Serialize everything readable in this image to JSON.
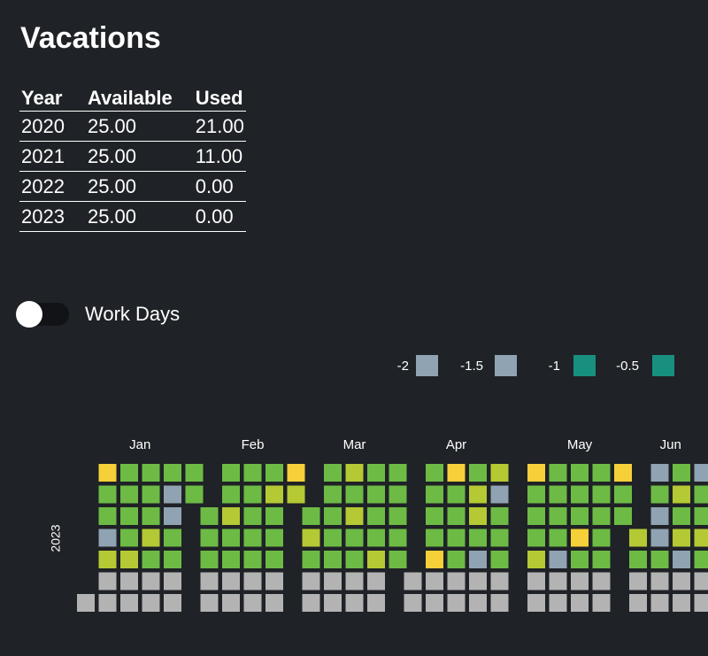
{
  "header": {
    "title": "Vacations"
  },
  "table": {
    "columns": [
      "Year",
      "Available",
      "Used"
    ],
    "rows": [
      [
        "2020",
        "25.00",
        "21.00"
      ],
      [
        "2021",
        "25.00",
        "11.00"
      ],
      [
        "2022",
        "25.00",
        "0.00"
      ],
      [
        "2023",
        "25.00",
        "0.00"
      ]
    ]
  },
  "toggle": {
    "label": "Work Days"
  },
  "legend": [
    {
      "value": -2,
      "color": "#8fa3b2"
    },
    {
      "value": -1.5,
      "color": "#8fa3b2"
    },
    {
      "value": -1,
      "color": "#17907f"
    },
    {
      "value": -0.5,
      "color": "#17907f"
    }
  ],
  "calendar": {
    "year": 2023,
    "months": [
      "Jan",
      "Feb",
      "Mar",
      "Apr",
      "May",
      "Jun"
    ],
    "days": [
      "#b3b3b3",
      "#f5d038",
      "#6dbb45",
      "#6dbb45",
      "#8fa3b2",
      "#b5c934",
      "#b3b3b3",
      "#b3b3b3",
      "#6dbb45",
      "#6dbb45",
      "#6dbb45",
      "#6dbb45",
      "#b5c934",
      "#b3b3b3",
      "#b3b3b3",
      "#6dbb45",
      "#6dbb45",
      "#6dbb45",
      "#b5c934",
      "#6dbb45",
      "#b3b3b3",
      "#b3b3b3",
      "#6dbb45",
      "#8fa3b2",
      "#8fa3b2",
      "#6dbb45",
      "#6dbb45",
      "#b3b3b3",
      "#b3b3b3",
      "#6dbb45",
      "#6dbb45",
      "#6dbb45",
      "#6dbb45",
      "#6dbb45",
      "#b3b3b3",
      "#b3b3b3",
      "#6dbb45",
      "#6dbb45",
      "#b5c934",
      "#6dbb45",
      "#6dbb45",
      "#b3b3b3",
      "#b3b3b3",
      "#6dbb45",
      "#6dbb45",
      "#6dbb45",
      "#6dbb45",
      "#6dbb45",
      "#b3b3b3",
      "#b3b3b3",
      "#6dbb45",
      "#b5c934",
      "#6dbb45",
      "#6dbb45",
      "#6dbb45",
      "#b3b3b3",
      "#b3b3b3",
      "#f5d038",
      "#b5c934",
      "#6dbb45",
      "#b5c934",
      "#6dbb45",
      "#b3b3b3",
      "#b3b3b3",
      "#6dbb45",
      "#6dbb45",
      "#6dbb45",
      "#6dbb45",
      "#6dbb45",
      "#b3b3b3",
      "#b3b3b3",
      "#b5c934",
      "#6dbb45",
      "#b5c934",
      "#6dbb45",
      "#6dbb45",
      "#b3b3b3",
      "#b3b3b3",
      "#6dbb45",
      "#6dbb45",
      "#6dbb45",
      "#6dbb45",
      "#b5c934",
      "#b3b3b3",
      "#b3b3b3",
      "#6dbb45",
      "#6dbb45",
      "#6dbb45",
      "#6dbb45",
      "#6dbb45",
      "#b3b3b3",
      "#b3b3b3",
      "#6dbb45",
      "#6dbb45",
      "#6dbb45",
      "#6dbb45",
      "#f5d038",
      "#b3b3b3",
      "#b3b3b3",
      "#f5d038",
      "#6dbb45",
      "#6dbb45",
      "#6dbb45",
      "#6dbb45",
      "#b3b3b3",
      "#b3b3b3",
      "#6dbb45",
      "#b5c934",
      "#b5c934",
      "#6dbb45",
      "#8fa3b2",
      "#b3b3b3",
      "#b3b3b3",
      "#b5c934",
      "#8fa3b2",
      "#6dbb45",
      "#6dbb45",
      "#6dbb45",
      "#b3b3b3",
      "#b3b3b3",
      "#f5d038",
      "#6dbb45",
      "#6dbb45",
      "#6dbb45",
      "#b5c934",
      "#b3b3b3",
      "#b3b3b3",
      "#6dbb45",
      "#6dbb45",
      "#6dbb45",
      "#6dbb45",
      "#8fa3b2",
      "#b3b3b3",
      "#b3b3b3",
      "#6dbb45",
      "#6dbb45",
      "#6dbb45",
      "#f5d038",
      "#6dbb45",
      "#b3b3b3",
      "#b3b3b3",
      "#6dbb45",
      "#6dbb45",
      "#6dbb45",
      "#6dbb45",
      "#6dbb45",
      "#b3b3b3",
      "#b3b3b3",
      "#f5d038",
      "#6dbb45",
      "#6dbb45",
      "#b5c934",
      "#6dbb45",
      "#b3b3b3",
      "#b3b3b3",
      "#8fa3b2",
      "#6dbb45",
      "#8fa3b2",
      "#8fa3b2",
      "#6dbb45",
      "#b3b3b3",
      "#b3b3b3",
      "#6dbb45",
      "#b5c934",
      "#6dbb45",
      "#b5c934",
      "#8fa3b2",
      "#b3b3b3",
      "#b3b3b3",
      "#8fa3b2",
      "#6dbb45",
      "#6dbb45",
      "#b5c934",
      "#6dbb45",
      "#b3b3b3",
      "#b3b3b3"
    ]
  }
}
